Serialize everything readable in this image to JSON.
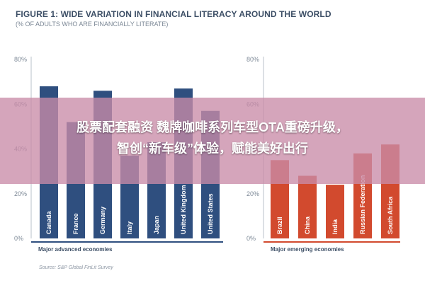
{
  "figure": {
    "title": "FIGURE 1: WIDE VARIATION IN FINANCIAL LITERACY AROUND THE WORLD",
    "subtitle": "(% OF ADULTS WHO ARE FINANCIALLY LITERATE)",
    "source": "Source: S&P Global FinLit Survey"
  },
  "overlay": {
    "line1": "股票配套融资 魏牌咖啡系列车型OTA重磅升级，",
    "line2": "智创“新车级”体验，赋能美好出行"
  },
  "chart_data": [
    {
      "type": "bar",
      "group": "Major advanced economies",
      "categories": [
        "Canada",
        "France",
        "Germany",
        "Italy",
        "Japan",
        "United Kingdom",
        "United States"
      ],
      "values": [
        68,
        52,
        66,
        37,
        43,
        67,
        57
      ],
      "ylim": [
        0,
        80
      ],
      "yticks": [
        "0%",
        "20%",
        "40%",
        "60%",
        "80%"
      ],
      "color": "#2f4f7f"
    },
    {
      "type": "bar",
      "group": "Major emerging economies",
      "categories": [
        "Brazil",
        "China",
        "India",
        "Russian Federation",
        "South Africa"
      ],
      "values": [
        35,
        28,
        24,
        38,
        42
      ],
      "ylim": [
        0,
        80
      ],
      "yticks": [
        "0%",
        "20%",
        "40%",
        "60%",
        "80%"
      ],
      "color": "#d24a2e"
    }
  ]
}
